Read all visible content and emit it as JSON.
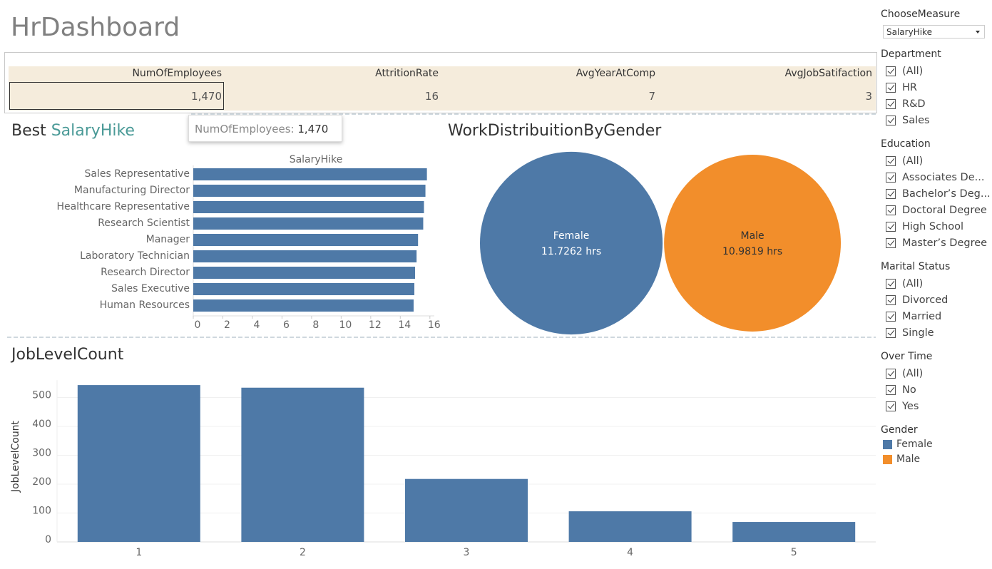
{
  "header": {
    "title": "HrDashboard"
  },
  "kpis": {
    "headers": [
      "NumOfEmployees",
      "AttritionRate",
      "AvgYearAtComp",
      "AvgJobSatifaction"
    ],
    "values": [
      "1,470",
      "16",
      "7",
      "3"
    ]
  },
  "tooltip": {
    "label": "NumOfEmployees:",
    "value": "1,470"
  },
  "parameter": {
    "title": "ChooseMeasure",
    "value": "SalaryHike"
  },
  "filters": [
    {
      "title": "Department",
      "options": [
        "(All)",
        "HR",
        "R&D",
        "Sales"
      ]
    },
    {
      "title": "Education",
      "options": [
        "(All)",
        "Associates De...",
        "Bachelor’s Deg...",
        "Doctoral Degree",
        "High School",
        "Master’s Degree"
      ]
    },
    {
      "title": "Marital Status",
      "options": [
        "(All)",
        "Divorced",
        "Married",
        "Single"
      ]
    },
    {
      "title": "Over Time",
      "options": [
        "(All)",
        "No",
        "Yes"
      ]
    }
  ],
  "legend": {
    "title": "Gender"
  },
  "chart_data": [
    {
      "type": "hbar",
      "title": "Best",
      "title_measure": "SalaryHike",
      "x_label": "SalaryHike",
      "categories": [
        "Sales Representative",
        "Manufacturing Director",
        "Healthcare Representative",
        "Research Scientist",
        "Manager",
        "Laboratory Technician",
        "Research Director",
        "Sales Executive",
        "Human Resources"
      ],
      "values": [
        15.8,
        15.7,
        15.6,
        15.55,
        15.2,
        15.1,
        15.0,
        14.95,
        14.9
      ],
      "color": "#4e79a7",
      "xlim": [
        0,
        16.3
      ],
      "xticks": [
        0,
        2,
        4,
        6,
        8,
        10,
        12,
        14,
        16
      ]
    },
    {
      "type": "bubble",
      "title": "WorkDistribuitionByGender",
      "categories": [
        "Female",
        "Male"
      ],
      "values": [
        11.7262,
        10.9819
      ],
      "value_labels": [
        "11.7262 hrs",
        "10.9819 hrs"
      ],
      "colors": [
        "#4e79a7",
        "#f28e2b"
      ]
    },
    {
      "type": "bar",
      "title": "JobLevelCount",
      "y_label": "JobLevelCount",
      "categories": [
        "1",
        "2",
        "3",
        "4",
        "5"
      ],
      "values": [
        543,
        534,
        218,
        106,
        69
      ],
      "color": "#4e79a7",
      "ylim": [
        0,
        560
      ],
      "yticks": [
        0,
        100,
        200,
        300,
        400,
        500
      ],
      "grid": true
    }
  ]
}
